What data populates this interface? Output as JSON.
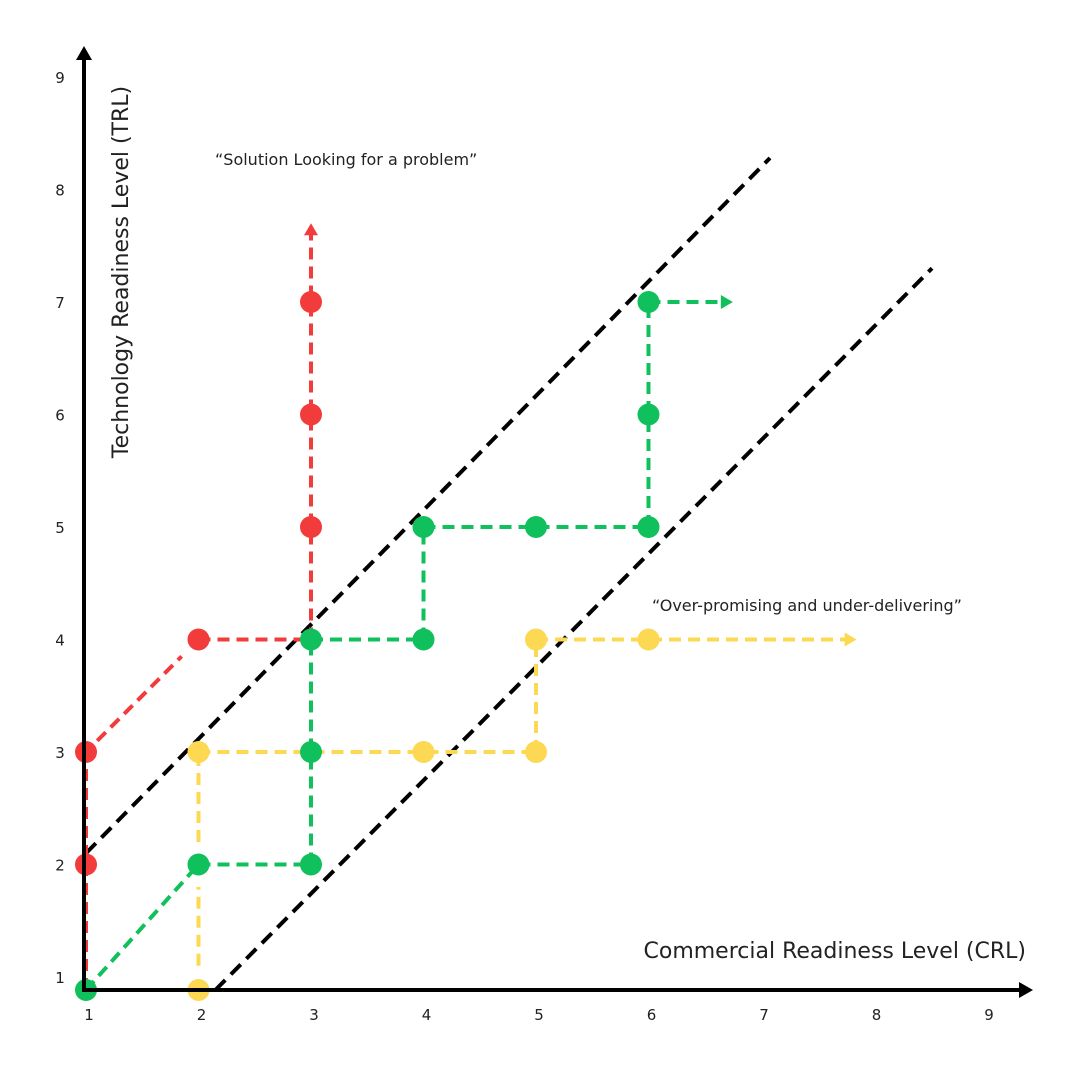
{
  "chart_data": {
    "type": "diagram",
    "xlabel": "Commercial Readiness Level (CRL)",
    "ylabel": "Technology Readiness Level (TRL)",
    "xticks": [
      "1",
      "2",
      "3",
      "4",
      "5",
      "6",
      "7",
      "8",
      "9"
    ],
    "yticks": [
      "1",
      "2",
      "3",
      "4",
      "5",
      "6",
      "7",
      "8",
      "9"
    ],
    "xlim": [
      1,
      9
    ],
    "ylim": [
      1,
      9
    ],
    "colors": {
      "red": "#f23b3b",
      "green": "#10c05c",
      "yellow": "#fdd853",
      "black": "#000000"
    },
    "annotations": [
      {
        "text": "“Solution Looking for a problem”",
        "x": 2.15,
        "y": 8.6
      },
      {
        "text": "“Over-promising and under-delivering”",
        "x": 6.02,
        "y": 4.3
      }
    ],
    "boundaries": [
      {
        "from": [
          1,
          2.1
        ],
        "to": [
          7.08,
          8.28
        ]
      },
      {
        "from": [
          2.15,
          1
        ],
        "to": [
          8.52,
          7.3
        ]
      }
    ],
    "series": [
      {
        "color": "yellow",
        "segments": [
          {
            "from": [
              1,
              1
            ],
            "to": [
              2,
              1
            ]
          },
          {
            "from": [
              2,
              1.1
            ],
            "to": [
              2,
              1.8
            ]
          },
          {
            "from": [
              2,
              2.2
            ],
            "to": [
              2,
              3
            ]
          },
          {
            "from": [
              2,
              3
            ],
            "to": [
              5,
              3
            ]
          },
          {
            "from": [
              5,
              3
            ],
            "to": [
              5,
              4
            ]
          },
          {
            "from": [
              5,
              4
            ],
            "to": [
              7.85,
              4
            ],
            "arrow": "right"
          }
        ],
        "points": [
          [
            2,
            1
          ],
          [
            2,
            3
          ],
          [
            4,
            3
          ],
          [
            5,
            3
          ],
          [
            5,
            4
          ],
          [
            6,
            4
          ]
        ]
      },
      {
        "color": "red",
        "segments": [
          {
            "from": [
              1,
              1
            ],
            "to": [
              1,
              3
            ]
          },
          {
            "from": [
              1.1,
              3.1
            ],
            "to": [
              1.85,
              3.85
            ]
          },
          {
            "from": [
              2,
              4
            ],
            "to": [
              3,
              4
            ]
          },
          {
            "from": [
              3,
              4
            ],
            "to": [
              3,
              7.7
            ],
            "arrow": "up"
          }
        ],
        "points": [
          [
            1,
            2
          ],
          [
            1,
            3
          ],
          [
            2,
            4
          ],
          [
            3,
            5
          ],
          [
            3,
            6
          ],
          [
            3,
            7
          ]
        ]
      },
      {
        "color": "green",
        "segments": [
          {
            "from": [
              1,
              1
            ],
            "to": [
              2,
              2
            ]
          },
          {
            "from": [
              2,
              2
            ],
            "to": [
              3,
              2
            ]
          },
          {
            "from": [
              3,
              2
            ],
            "to": [
              3,
              4
            ]
          },
          {
            "from": [
              3,
              4
            ],
            "to": [
              4,
              4
            ]
          },
          {
            "from": [
              4,
              4
            ],
            "to": [
              4,
              5
            ]
          },
          {
            "from": [
              4,
              5
            ],
            "to": [
              6,
              5
            ]
          },
          {
            "from": [
              6,
              5
            ],
            "to": [
              6,
              7
            ]
          },
          {
            "from": [
              6,
              7
            ],
            "to": [
              6.75,
              7
            ],
            "arrow": "right"
          }
        ],
        "points": [
          [
            1,
            1
          ],
          [
            2,
            2
          ],
          [
            3,
            2
          ],
          [
            3,
            3
          ],
          [
            3,
            4
          ],
          [
            4,
            4
          ],
          [
            4,
            5
          ],
          [
            5,
            5
          ],
          [
            6,
            5
          ],
          [
            6,
            6
          ],
          [
            6,
            7
          ]
        ]
      }
    ]
  }
}
